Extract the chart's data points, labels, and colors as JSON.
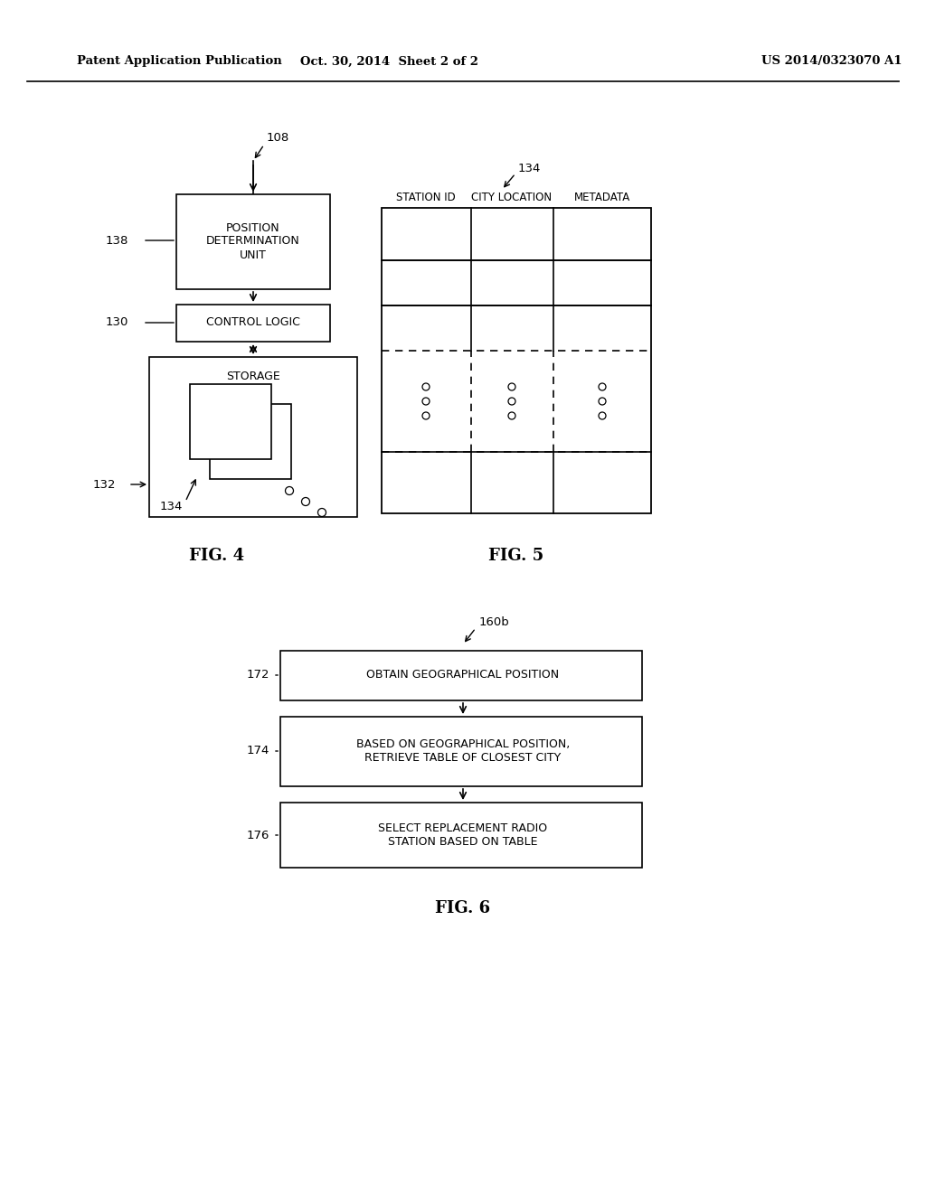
{
  "bg_color": "#ffffff",
  "text_color": "#000000",
  "header_left": "Patent Application Publication",
  "header_center": "Oct. 30, 2014  Sheet 2 of 2",
  "header_right": "US 2014/0323070 A1",
  "fig4_label": "FIG. 4",
  "fig5_label": "FIG. 5",
  "fig6_label": "FIG. 6",
  "ref_108": "108",
  "ref_138": "138",
  "ref_130": "130",
  "ref_132": "132",
  "ref_134_fig4": "134",
  "ref_134_fig5": "134",
  "ref_160b": "160b",
  "ref_172": "172",
  "ref_174": "174",
  "ref_176": "176",
  "pdu_text": "POSITION\nDETERMINATION\nUNIT",
  "cl_text": "CONTROL LOGIC",
  "stor_text": "STORAGE",
  "fig5_headers": [
    "STATION ID",
    "CITY LOCATION",
    "METADATA"
  ],
  "box1_text": "OBTAIN GEOGRAPHICAL POSITION",
  "box2_text": "BASED ON GEOGRAPHICAL POSITION,\nRETRIEVE TABLE OF CLOSEST CITY",
  "box3_text": "SELECT REPLACEMENT RADIO\nSTATION BASED ON TABLE"
}
